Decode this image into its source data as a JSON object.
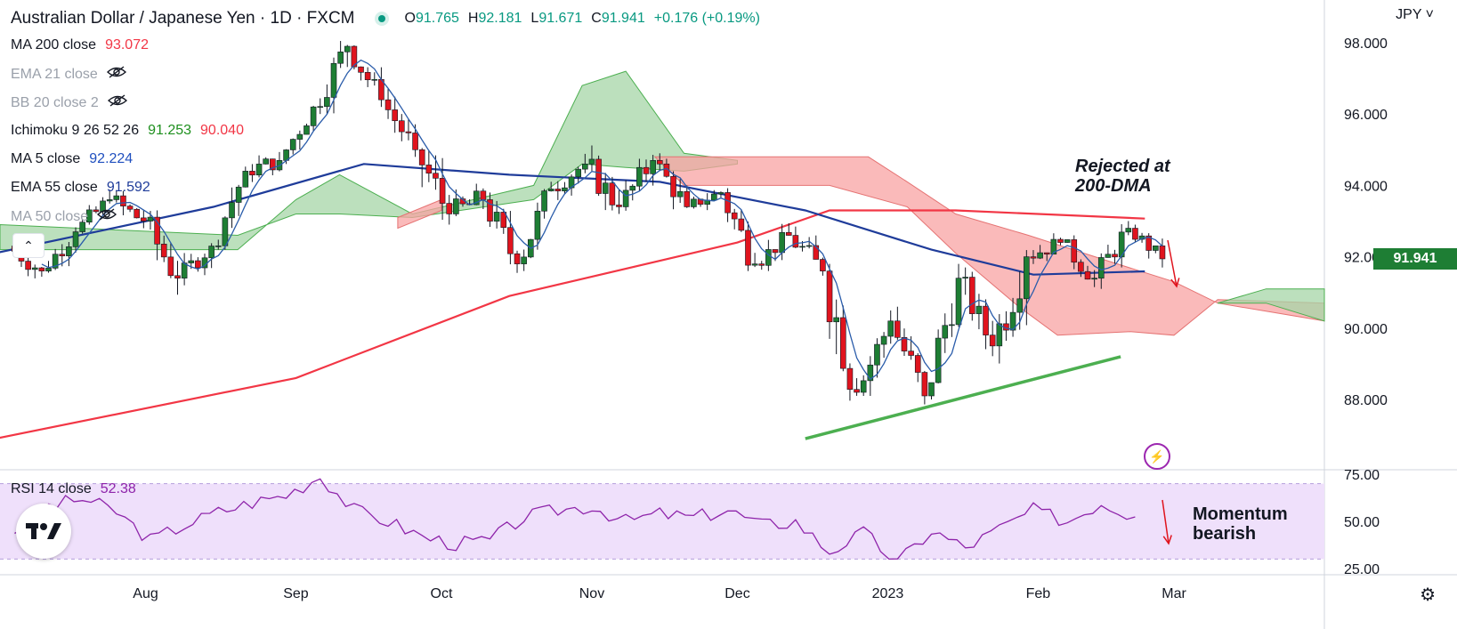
{
  "header": {
    "title": "Australian Dollar / Japanese Yen · 1D · FXCM",
    "ohlc": {
      "o_label": "O",
      "o": "91.765",
      "h_label": "H",
      "h": "92.181",
      "l_label": "L",
      "l": "91.671",
      "c_label": "C",
      "c": "91.941",
      "change": "+0.176 (+0.19%)"
    }
  },
  "indicators": [
    {
      "name": "MA 200 close",
      "value": "93.072",
      "value_color": "#f23645",
      "hidden": false
    },
    {
      "name": "EMA 21 close",
      "value": "",
      "hidden": true
    },
    {
      "name": "BB 20 close 2",
      "value": "",
      "hidden": true
    },
    {
      "name": "Ichimoku 9 26 52 26",
      "value": "91.253",
      "value2": "90.040",
      "value_color": "#1e8f1e",
      "value2_color": "#f23645",
      "hidden": false
    },
    {
      "name": "MA 5 close",
      "value": "92.224",
      "value_color": "#1f4fbf",
      "hidden": false
    },
    {
      "name": "EMA 55 close",
      "value": "91.592",
      "value_color": "#1f3c9a",
      "hidden": false
    },
    {
      "name": "MA 50 close",
      "value": "",
      "hidden": true
    }
  ],
  "rsi_legend": {
    "name": "RSI 14 close",
    "value": "52.38"
  },
  "currency": "JPY ˅",
  "last_price": "91.941",
  "annotations": {
    "rejected": [
      "Rejected at",
      "200-DMA"
    ],
    "momentum": [
      "Momentum",
      "bearish"
    ]
  },
  "colors": {
    "up": "#1e7e34",
    "down": "#e0141e",
    "ma200": "#f23645",
    "ema55": "#1f3c9a",
    "ma5": "#2a5caa",
    "cloud_bull": "#a5d6a7",
    "cloud_bear": "#f8a3a3",
    "rsi": "#8e24aa",
    "rsi_band": "#efe0fb",
    "trend": "#4caf50"
  },
  "chart_data": {
    "type": "candlestick",
    "price_axis": {
      "ticks": [
        "98.000",
        "96.000",
        "94.000",
        "92.000",
        "90.000",
        "88.000"
      ],
      "range": [
        86.2,
        99.0
      ]
    },
    "rsi_axis": {
      "ticks": [
        "75.00",
        "50.00",
        "25.00"
      ],
      "range": [
        22,
        80
      ],
      "band": [
        30,
        70
      ]
    },
    "x_labels": [
      "Aug",
      "Sep",
      "Oct",
      "Nov",
      "Dec",
      "2023",
      "Feb",
      "Mar"
    ],
    "x_label_dates": [
      "2022-08-01",
      "2022-09-01",
      "2022-10-01",
      "2022-11-01",
      "2022-12-01",
      "2023-01-01",
      "2023-02-01",
      "2023-03-01"
    ],
    "x_range": [
      "2022-07-02",
      "2023-04-01"
    ],
    "last_close": 91.941,
    "series_ohlc_sampled": [
      [
        "2022-07-05",
        92.3,
        92.8,
        91.2,
        91.6
      ],
      [
        "2022-07-12",
        91.6,
        92.9,
        91.4,
        92.7
      ],
      [
        "2022-07-19",
        92.7,
        94.0,
        92.5,
        93.6
      ],
      [
        "2022-07-26",
        93.6,
        94.5,
        92.8,
        93.0
      ],
      [
        "2022-08-02",
        93.0,
        93.3,
        90.6,
        91.4
      ],
      [
        "2022-08-09",
        91.4,
        92.7,
        91.2,
        92.3
      ],
      [
        "2022-08-16",
        92.3,
        94.6,
        92.2,
        94.4
      ],
      [
        "2022-08-23",
        94.4,
        95.2,
        93.8,
        94.7
      ],
      [
        "2022-08-30",
        94.7,
        96.4,
        94.6,
        96.2
      ],
      [
        "2022-09-06",
        96.2,
        98.4,
        96.0,
        97.9
      ],
      [
        "2022-09-13",
        97.9,
        98.1,
        96.2,
        96.4
      ],
      [
        "2022-09-20",
        96.4,
        96.7,
        94.8,
        95.0
      ],
      [
        "2022-09-27",
        95.0,
        95.4,
        92.2,
        93.2
      ],
      [
        "2022-10-04",
        93.2,
        94.4,
        92.4,
        93.6
      ],
      [
        "2022-10-11",
        93.6,
        93.8,
        91.2,
        91.8
      ],
      [
        "2022-10-18",
        91.8,
        94.2,
        91.6,
        93.9
      ],
      [
        "2022-10-25",
        93.9,
        95.0,
        93.5,
        94.6
      ],
      [
        "2022-11-01",
        94.6,
        95.6,
        93.2,
        93.4
      ],
      [
        "2022-11-08",
        93.4,
        95.1,
        93.1,
        94.7
      ],
      [
        "2022-11-15",
        94.7,
        94.9,
        93.0,
        93.4
      ],
      [
        "2022-11-22",
        93.4,
        94.0,
        93.0,
        93.8
      ],
      [
        "2022-11-29",
        93.8,
        94.1,
        91.6,
        91.8
      ],
      [
        "2022-12-06",
        91.8,
        93.0,
        91.6,
        92.6
      ],
      [
        "2022-12-13",
        92.6,
        93.2,
        91.2,
        91.6
      ],
      [
        "2022-12-20",
        91.6,
        91.8,
        87.0,
        88.2
      ],
      [
        "2022-12-27",
        88.2,
        90.5,
        88.1,
        90.2
      ],
      [
        "2023-01-03",
        90.2,
        90.6,
        87.6,
        88.1
      ],
      [
        "2023-01-10",
        88.1,
        91.8,
        88.0,
        91.4
      ],
      [
        "2023-01-17",
        91.4,
        91.7,
        89.2,
        89.5
      ],
      [
        "2023-01-24",
        89.5,
        92.4,
        88.5,
        92.0
      ],
      [
        "2023-01-31",
        92.0,
        92.8,
        91.5,
        92.4
      ],
      [
        "2023-02-07",
        92.4,
        92.6,
        91.0,
        91.4
      ],
      [
        "2023-02-14",
        91.4,
        93.0,
        91.1,
        92.8
      ],
      [
        "2023-02-21",
        92.8,
        92.9,
        91.67,
        91.941
      ]
    ],
    "ma200_points": [
      [
        "2022-07-01",
        86.9
      ],
      [
        "2022-09-01",
        88.6
      ],
      [
        "2022-10-15",
        90.9
      ],
      [
        "2022-12-01",
        92.4
      ],
      [
        "2022-12-20",
        93.3
      ],
      [
        "2023-01-15",
        93.3
      ],
      [
        "2023-02-23",
        93.07
      ]
    ],
    "ema55_points": [
      [
        "2022-07-01",
        92.1
      ],
      [
        "2022-08-15",
        93.4
      ],
      [
        "2022-09-15",
        94.6
      ],
      [
        "2022-10-15",
        94.3
      ],
      [
        "2022-11-15",
        94.1
      ],
      [
        "2022-12-15",
        93.3
      ],
      [
        "2023-01-10",
        92.2
      ],
      [
        "2023-01-31",
        91.5
      ],
      [
        "2023-02-23",
        91.59
      ]
    ],
    "trendline": [
      [
        "2022-12-15",
        86.9
      ],
      [
        "2023-02-18",
        89.2
      ]
    ],
    "rsi_values_sampled": [
      45,
      58,
      62,
      55,
      40,
      48,
      55,
      60,
      64,
      74,
      56,
      50,
      42,
      38,
      40,
      52,
      56,
      58,
      50,
      54,
      52,
      56,
      48,
      50,
      34,
      44,
      28,
      45,
      36,
      46,
      56,
      50,
      60,
      52.38
    ]
  }
}
